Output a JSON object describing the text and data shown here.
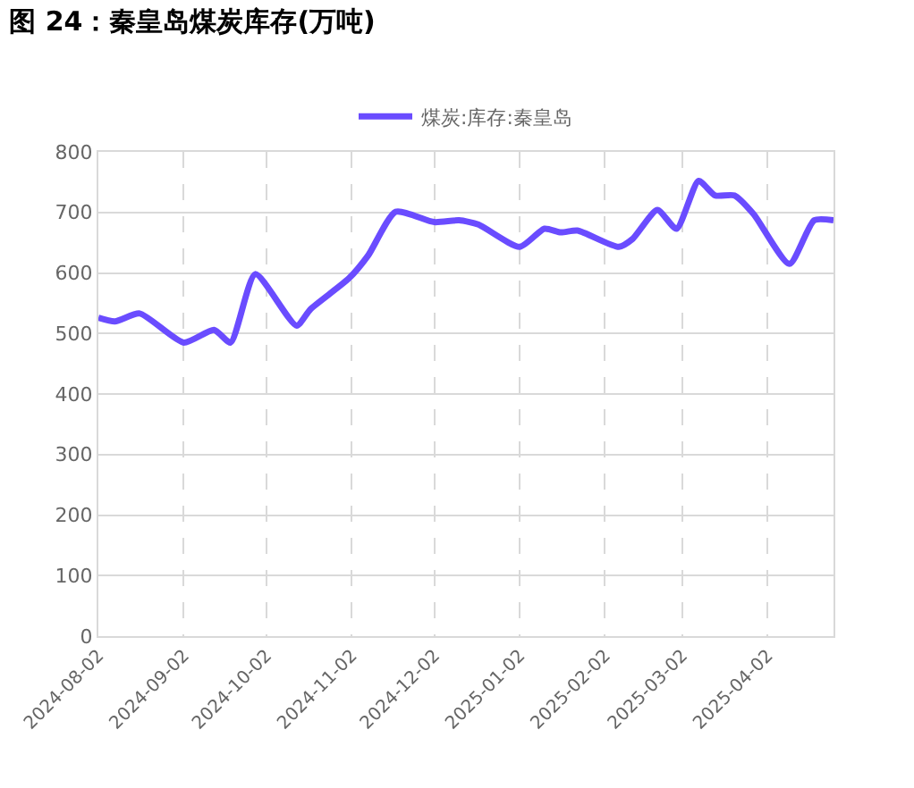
{
  "chart_data": {
    "type": "line",
    "title": "图 24：秦皇岛煤炭库存(万吨)",
    "x": [
      "2024-08-02",
      "2024-08-08",
      "2024-08-17",
      "2024-09-02",
      "2024-09-13",
      "2024-09-19",
      "2024-09-28",
      "2024-10-13",
      "2024-10-18",
      "2024-11-01",
      "2024-11-08",
      "2024-11-18",
      "2024-12-02",
      "2024-12-11",
      "2024-12-18",
      "2025-01-02",
      "2025-01-11",
      "2025-01-17",
      "2025-01-23",
      "2025-02-07",
      "2025-02-12",
      "2025-02-21",
      "2025-02-28",
      "2025-03-08",
      "2025-03-14",
      "2025-03-21",
      "2025-03-28",
      "2025-04-10",
      "2025-04-19",
      "2025-04-26"
    ],
    "series": [
      {
        "name": "煤炭:库存:秦皇岛",
        "color": "#6a4cff",
        "values": [
          526,
          520,
          533,
          485,
          506,
          485,
          598,
          513,
          540,
          591,
          629,
          701,
          684,
          687,
          680,
          643,
          673,
          667,
          670,
          643,
          656,
          704,
          673,
          752,
          728,
          728,
          697,
          615,
          687,
          687
        ]
      }
    ],
    "xlim": [
      "2024-08-02",
      "2025-04-26"
    ],
    "xticks": [
      {
        "value": "2024-08-02",
        "label": "2024-08-02"
      },
      {
        "value": "2024-09-02",
        "label": "2024-09-02"
      },
      {
        "value": "2024-10-02",
        "label": "2024-10-02"
      },
      {
        "value": "2024-11-02",
        "label": "2024-11-02"
      },
      {
        "value": "2024-12-02",
        "label": "2024-12-02"
      },
      {
        "value": "2025-01-02",
        "label": "2025-01-02"
      },
      {
        "value": "2025-02-02",
        "label": "2025-02-02"
      },
      {
        "value": "2025-03-02",
        "label": "2025-03-02"
      },
      {
        "value": "2025-04-02",
        "label": "2025-04-02"
      }
    ],
    "ylim": [
      0,
      800
    ],
    "yticks": [
      0,
      100,
      200,
      300,
      400,
      500,
      600,
      700,
      800
    ],
    "grid": true,
    "legend": "top",
    "marker": "none",
    "line_style": "solid"
  }
}
